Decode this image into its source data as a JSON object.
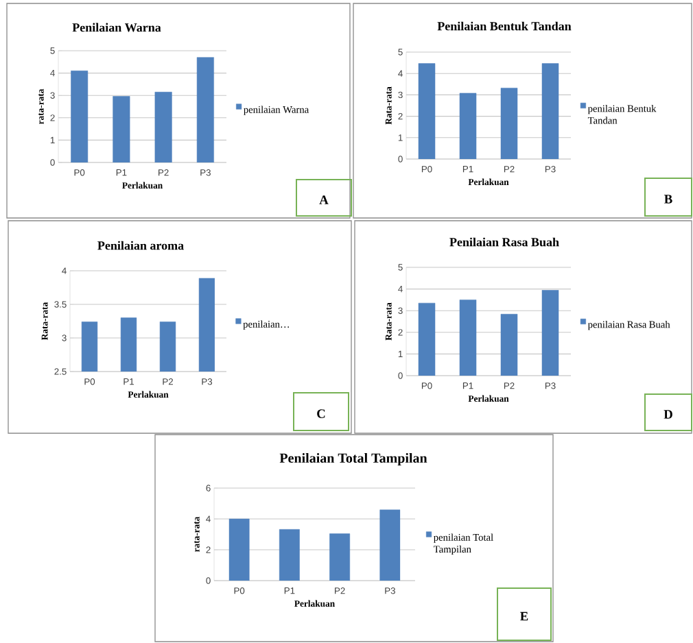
{
  "chart_data": [
    {
      "type": "bar",
      "title": "Penilaian Warna",
      "xlabel": "Perlakuan",
      "ylabel": "rata-rata",
      "categories": [
        "P0",
        "P1",
        "P2",
        "P3"
      ],
      "series": [
        {
          "name": "penilaian Warna",
          "color": "#4f81bd",
          "values": [
            4.1,
            2.96,
            3.15,
            4.7
          ]
        }
      ],
      "ylim": [
        0,
        5
      ],
      "yticks": [
        0,
        1,
        2,
        3,
        4,
        5
      ],
      "grid": "y",
      "legend": "right",
      "annotations": [
        "A"
      ]
    },
    {
      "type": "bar",
      "title": "Penilaian  Bentuk Tandan",
      "xlabel": "Perlakuan",
      "ylabel": "Rata-rata",
      "categories": [
        "P0",
        "P1",
        "P2",
        "P3"
      ],
      "series": [
        {
          "name": "penilaian  Bentuk Tandan",
          "color": "#4f81bd",
          "values": [
            4.47,
            3.08,
            3.32,
            4.47
          ]
        }
      ],
      "ylim": [
        0,
        5
      ],
      "yticks": [
        0,
        1,
        2,
        3,
        4,
        5
      ],
      "grid": "y",
      "legend": "right",
      "annotations": [
        "B"
      ]
    },
    {
      "type": "bar",
      "title": "Penilaian  aroma",
      "xlabel": "Perlakuan",
      "ylabel": "Rata-rata",
      "categories": [
        "P0",
        "P1",
        "P2",
        "P3"
      ],
      "series": [
        {
          "name": "penilaian…",
          "color": "#4f81bd",
          "values": [
            3.24,
            3.3,
            3.24,
            3.89
          ]
        }
      ],
      "ylim": [
        2.5,
        4
      ],
      "yticks": [
        2.5,
        3,
        3.5,
        4
      ],
      "grid": "y",
      "legend": "right",
      "annotations": [
        "C"
      ]
    },
    {
      "type": "bar",
      "title": "Penilaian  Rasa Buah",
      "xlabel": "Perlakuan",
      "ylabel": "Rata-rata",
      "categories": [
        "P0",
        "P1",
        "P2",
        "P3"
      ],
      "series": [
        {
          "name": "penilaian  Rasa Buah",
          "color": "#4f81bd",
          "values": [
            3.35,
            3.5,
            2.84,
            3.95
          ]
        }
      ],
      "ylim": [
        0,
        5
      ],
      "yticks": [
        0,
        1,
        2,
        3,
        4,
        5
      ],
      "grid": "y",
      "legend": "right",
      "annotations": [
        "D"
      ]
    },
    {
      "type": "bar",
      "title": "Penilaian  Total Tampilan",
      "xlabel": "Perlakuan",
      "ylabel": "rata-rata",
      "categories": [
        "P0",
        "P1",
        "P2",
        "P3"
      ],
      "series": [
        {
          "name": "penilaian  Total Tampilan",
          "color": "#4f81bd",
          "values": [
            4.0,
            3.32,
            3.04,
            4.59
          ]
        }
      ],
      "ylim": [
        0,
        6
      ],
      "yticks": [
        0,
        2,
        4,
        6
      ],
      "grid": "y",
      "legend": "right",
      "annotations": [
        "E"
      ]
    }
  ]
}
